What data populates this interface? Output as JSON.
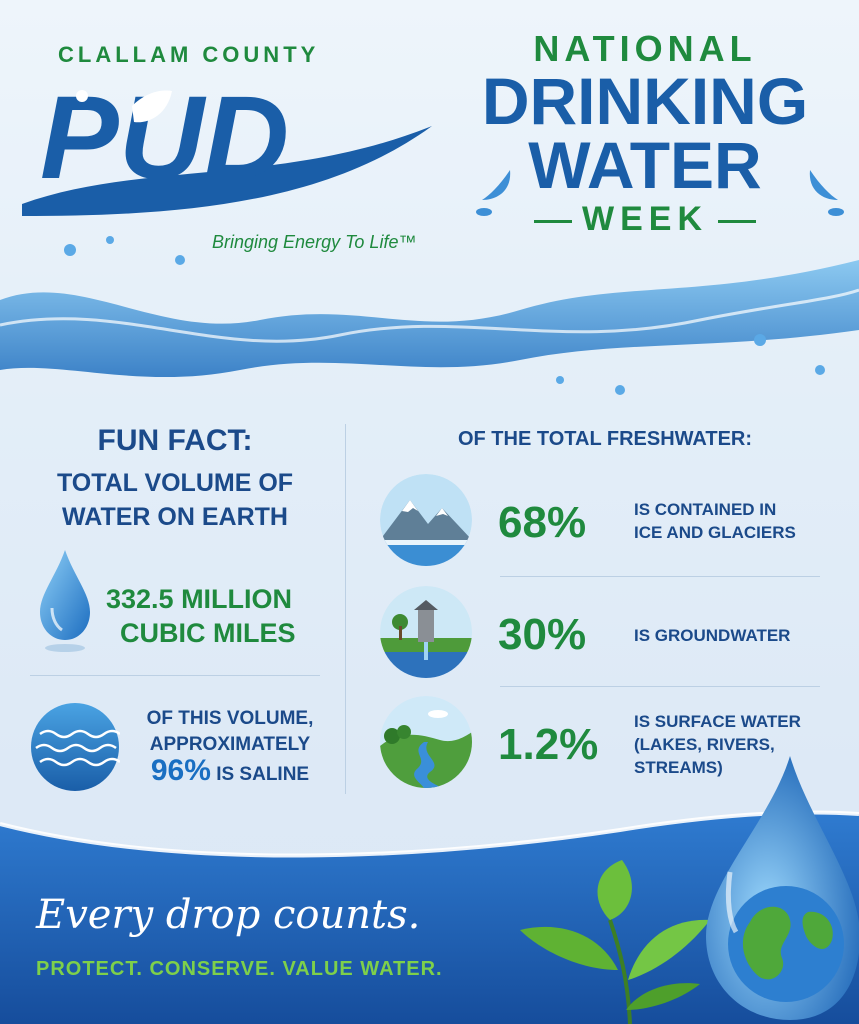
{
  "logo": {
    "county": "CLALLAM COUNTY",
    "name": "PUD",
    "tagline": "Bringing Energy To Life™"
  },
  "header": {
    "line1": "NATIONAL",
    "line2": "DRINKING",
    "line3": "WATER",
    "line4": "WEEK"
  },
  "fun_fact": {
    "title": "FUN FACT:",
    "subtitle_1": "TOTAL VOLUME OF",
    "subtitle_2": "WATER ON EARTH",
    "volume_line1": "332.5 MILLION",
    "volume_line2": "CUBIC MILES",
    "saline_line1": "OF THIS VOLUME,",
    "saline_line2": "APPROXIMATELY",
    "saline_pct": "96%",
    "saline_label": "IS SALINE",
    "drop_icon": "water-drop-icon",
    "ocean_icon": "ocean-waves-icon"
  },
  "freshwater": {
    "title": "OF THE TOTAL FRESHWATER:",
    "items": [
      {
        "pct": "68%",
        "line1": "IS CONTAINED IN",
        "line2": "ICE AND GLACIERS",
        "line3": "",
        "icon": "mountain-glacier-icon"
      },
      {
        "pct": "30%",
        "line1": "IS GROUNDWATER",
        "line2": "",
        "line3": "",
        "icon": "well-icon"
      },
      {
        "pct": "1.2%",
        "line1": "IS SURFACE WATER",
        "line2": "(LAKES, RIVERS,",
        "line3": "STREAMS)",
        "icon": "river-icon"
      }
    ]
  },
  "footer": {
    "slogan": "Every drop counts.",
    "motto": "PROTECT. CONSERVE. VALUE WATER."
  },
  "colors": {
    "green": "#1f8a3e",
    "blue": "#1a5ea8",
    "navy": "#1b4a8a",
    "footer_blue": "#1a56a8"
  }
}
